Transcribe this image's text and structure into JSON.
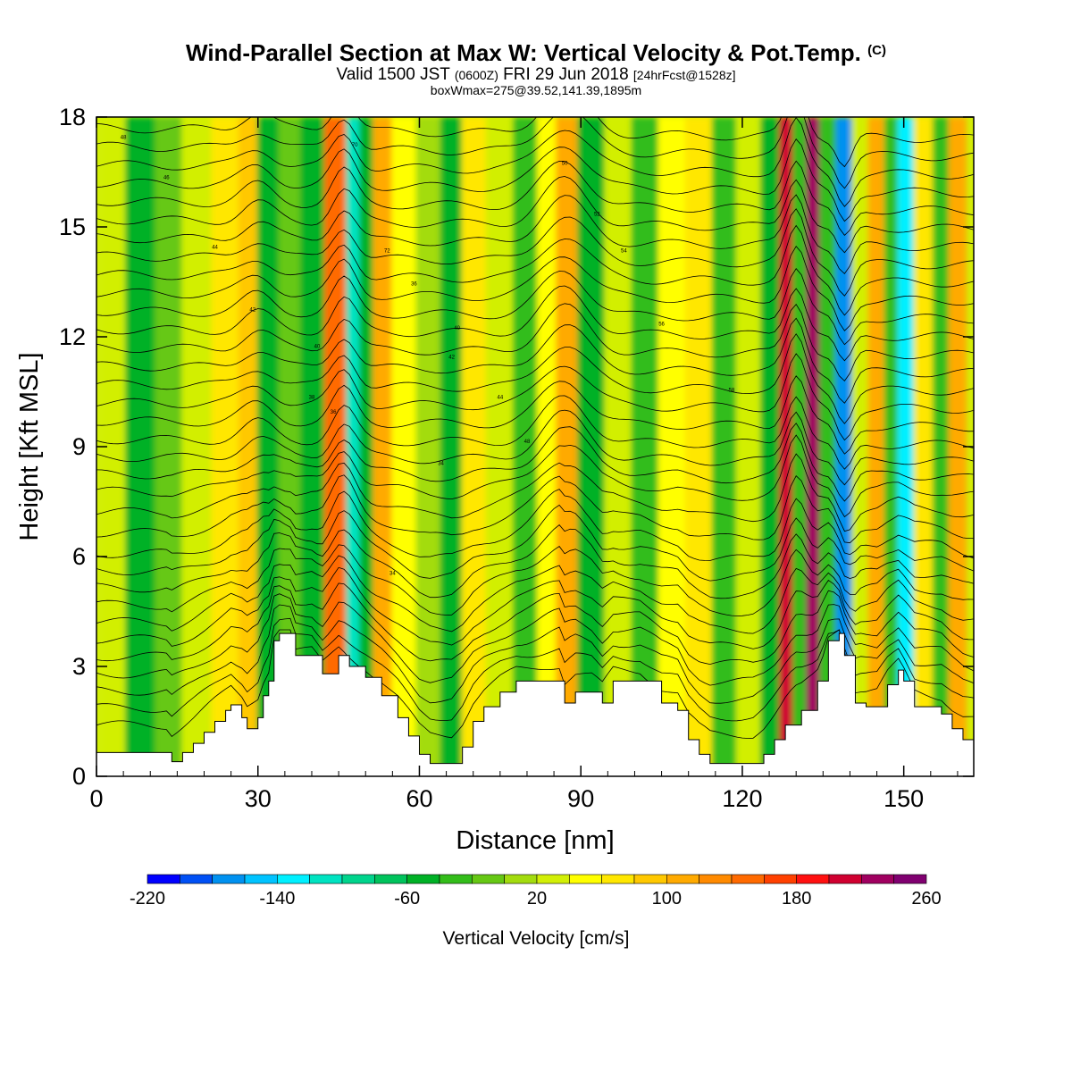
{
  "header": {
    "title": "Wind-Parallel Section at Max W: Vertical Velocity & Pot.Temp.",
    "copyright": "(C)",
    "valid_prefix": "Valid 1500 JST",
    "valid_utc": "(0600Z)",
    "valid_date": "FRI 29 Jun 2018",
    "forecast": "[24hrFcst@1528z]",
    "box_info": "boxWmax=275@39.52,141.39,1895m"
  },
  "chart_data": {
    "type": "heatmap",
    "xlabel": "Distance [nm]",
    "ylabel": "Height [Kft MSL]",
    "xlim": [
      0,
      163
    ],
    "ylim": [
      0,
      18
    ],
    "x_ticks": [
      0,
      30,
      60,
      90,
      120,
      150
    ],
    "y_ticks": [
      0,
      3,
      6,
      9,
      12,
      15,
      18
    ],
    "colorbar": {
      "title": "Vertical Velocity [cm/s]",
      "min": -220,
      "max": 260,
      "step": 20,
      "tick_labels": [
        -220,
        -140,
        -60,
        20,
        100,
        180,
        260
      ],
      "colors": [
        "#0000ff",
        "#0050f5",
        "#0091f0",
        "#00c3ff",
        "#00f0ff",
        "#00e3c1",
        "#00d48c",
        "#00c35c",
        "#00b126",
        "#33bd1a",
        "#66c814",
        "#a3dc0e",
        "#d2ef06",
        "#ffff00",
        "#ffe700",
        "#ffc800",
        "#ffaa00",
        "#ff8a00",
        "#ff6a00",
        "#ff4000",
        "#ff1010",
        "#d00030",
        "#a00060",
        "#800070",
        "#4b0082"
      ]
    },
    "velocity_columns": [
      {
        "x": 3,
        "w": 20
      },
      {
        "x": 8,
        "w": -60
      },
      {
        "x": 14,
        "w": -20
      },
      {
        "x": 18,
        "w": 20
      },
      {
        "x": 25,
        "w": 60
      },
      {
        "x": 28,
        "w": 80
      },
      {
        "x": 32,
        "w": -60
      },
      {
        "x": 36,
        "w": -20
      },
      {
        "x": 40,
        "w": -60
      },
      {
        "x": 45,
        "w": 140
      },
      {
        "x": 48,
        "w": -120
      },
      {
        "x": 50,
        "w": -60
      },
      {
        "x": 53,
        "w": 100
      },
      {
        "x": 57,
        "w": 40
      },
      {
        "x": 62,
        "w": 0
      },
      {
        "x": 66,
        "w": -60
      },
      {
        "x": 70,
        "w": 60
      },
      {
        "x": 75,
        "w": 20
      },
      {
        "x": 80,
        "w": -40
      },
      {
        "x": 84,
        "w": 40
      },
      {
        "x": 87,
        "w": 100
      },
      {
        "x": 92,
        "w": -60
      },
      {
        "x": 97,
        "w": 20
      },
      {
        "x": 102,
        "w": -40
      },
      {
        "x": 107,
        "w": 40
      },
      {
        "x": 112,
        "w": 60
      },
      {
        "x": 117,
        "w": -40
      },
      {
        "x": 121,
        "w": 20
      },
      {
        "x": 126,
        "w": -60
      },
      {
        "x": 128,
        "w": 200
      },
      {
        "x": 131,
        "w": -40
      },
      {
        "x": 133,
        "w": 220
      },
      {
        "x": 136,
        "w": -40
      },
      {
        "x": 139,
        "w": -180
      },
      {
        "x": 142,
        "w": 20
      },
      {
        "x": 145,
        "w": 100
      },
      {
        "x": 148,
        "w": -40
      },
      {
        "x": 150,
        "w": -140
      },
      {
        "x": 154,
        "w": 60
      },
      {
        "x": 157,
        "w": -40
      },
      {
        "x": 160,
        "w": 100
      }
    ],
    "terrain": [
      [
        0,
        0.65
      ],
      [
        13,
        0.65
      ],
      [
        14,
        0.4
      ],
      [
        16,
        0.65
      ],
      [
        18,
        0.9
      ],
      [
        20,
        1.2
      ],
      [
        22,
        1.5
      ],
      [
        24,
        1.8
      ],
      [
        25,
        1.95
      ],
      [
        27,
        1.6
      ],
      [
        28,
        1.3
      ],
      [
        30,
        1.6
      ],
      [
        31,
        2.2
      ],
      [
        32,
        2.6
      ],
      [
        33,
        3.7
      ],
      [
        34,
        3.9
      ],
      [
        36,
        3.9
      ],
      [
        37,
        3.3
      ],
      [
        40,
        3.3
      ],
      [
        42,
        2.8
      ],
      [
        45,
        3.3
      ],
      [
        47,
        3.0
      ],
      [
        50,
        2.7
      ],
      [
        53,
        2.2
      ],
      [
        56,
        1.6
      ],
      [
        58,
        1.1
      ],
      [
        60,
        0.6
      ],
      [
        62,
        0.35
      ],
      [
        66,
        0.35
      ],
      [
        68,
        0.8
      ],
      [
        70,
        1.5
      ],
      [
        72,
        1.9
      ],
      [
        75,
        2.3
      ],
      [
        78,
        2.6
      ],
      [
        86,
        2.6
      ],
      [
        87,
        2.0
      ],
      [
        89,
        2.3
      ],
      [
        92,
        2.3
      ],
      [
        94,
        2.0
      ],
      [
        96,
        2.6
      ],
      [
        101,
        2.6
      ],
      [
        105,
        2.0
      ],
      [
        108,
        1.8
      ],
      [
        110,
        1.0
      ],
      [
        112,
        0.6
      ],
      [
        114,
        0.35
      ],
      [
        122,
        0.35
      ],
      [
        124,
        0.6
      ],
      [
        126,
        1.0
      ],
      [
        128,
        1.4
      ],
      [
        131,
        1.8
      ],
      [
        134,
        2.6
      ],
      [
        136,
        3.7
      ],
      [
        138,
        3.9
      ],
      [
        139,
        3.3
      ],
      [
        141,
        2.0
      ],
      [
        143,
        1.9
      ],
      [
        145,
        1.9
      ],
      [
        147,
        2.5
      ],
      [
        149,
        2.9
      ],
      [
        150,
        2.6
      ],
      [
        152,
        1.9
      ],
      [
        157,
        1.7
      ],
      [
        159,
        1.3
      ],
      [
        161,
        1.0
      ],
      [
        163,
        0.9
      ]
    ],
    "isentropes": {
      "base_heights_kft": [
        0.9,
        1.4,
        1.9,
        2.4,
        2.9,
        3.4,
        3.9,
        4.4,
        4.9,
        5.4,
        5.9,
        6.5,
        7.1,
        7.7,
        8.2,
        8.7,
        9.2,
        9.7,
        10.2,
        10.7,
        11.2,
        11.7,
        12.2,
        12.7,
        13.2,
        13.7,
        14.2,
        14.7,
        15.2,
        15.7,
        16.2,
        16.7,
        17.2,
        17.7
      ]
    },
    "contour_labels": [
      "48",
      "46",
      "44",
      "42",
      "40",
      "38",
      "36",
      "34",
      "34",
      "70",
      "72",
      "36",
      "40",
      "42",
      "44",
      "48",
      "50",
      "52",
      "54",
      "56",
      "58"
    ]
  }
}
